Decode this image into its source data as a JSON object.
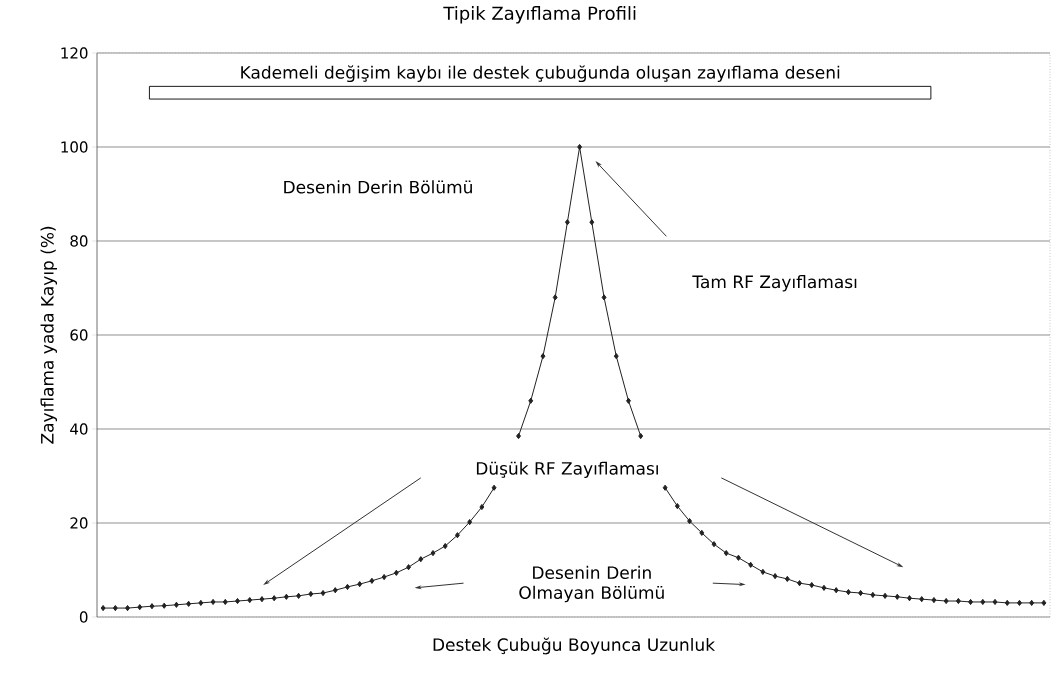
{
  "chart_data": {
    "type": "line",
    "title": "Tipik Zayıflama Profili",
    "xlabel": "Destek Çubuğu Boyunca Uzunluk",
    "ylabel": "Zayıflama yada Kayıp (%)",
    "categories": [
      null,
      null,
      null,
      null,
      null,
      null,
      null,
      null,
      null,
      null,
      null,
      null,
      null,
      null,
      null,
      null,
      null,
      null,
      null,
      null,
      null,
      null,
      null,
      null,
      null,
      null,
      null,
      null,
      null,
      null,
      null,
      null,
      null,
      null,
      null,
      null,
      null,
      null,
      null,
      null,
      null,
      null,
      null,
      null,
      null,
      null,
      null,
      null,
      null,
      null,
      null,
      null,
      null,
      null,
      null,
      null,
      null,
      null,
      null,
      null,
      null,
      null,
      null,
      null,
      null,
      null,
      null,
      null,
      null,
      null,
      null,
      null,
      null,
      null,
      null,
      null,
      null,
      null
    ],
    "series": [
      {
        "color": "#222222",
        "values": [
          1.9,
          1.9,
          1.9,
          2.1,
          2.3,
          2.4,
          2.6,
          2.8,
          3.0,
          3.2,
          3.2,
          3.4,
          3.6,
          3.8,
          4.0,
          4.3,
          4.5,
          4.9,
          5.1,
          5.7,
          6.4,
          7.0,
          7.7,
          8.5,
          9.4,
          10.6,
          12.3,
          13.6,
          15.1,
          17.4,
          20.2,
          23.4,
          27.5,
          null,
          38.5,
          46,
          55.5,
          68,
          84,
          100,
          84,
          68,
          55.5,
          46,
          38.5,
          null,
          27.5,
          23.6,
          20.4,
          17.9,
          15.5,
          13.6,
          12.6,
          11.1,
          9.6,
          8.7,
          8.1,
          7.2,
          6.8,
          6.2,
          5.7,
          5.3,
          5.1,
          4.7,
          4.5,
          4.3,
          4.0,
          3.8,
          3.6,
          3.4,
          3.4,
          3.2,
          3.2,
          3.2,
          3.0,
          3.0,
          3.0,
          3.0
        ]
      }
    ],
    "ylim": [
      0,
      120
    ],
    "yticks": [
      0,
      20,
      40,
      60,
      80,
      100,
      120
    ],
    "grid": "y",
    "marker": "diamond",
    "line_style": "solid",
    "tick_labels": "y",
    "annotations": [
      "Kademeli değişim kaybı ile destek çubuğunda oluşan zayıflama deseni",
      "Desenin Derin Bölümü",
      "Tam RF Zayıflaması",
      "Düşük RF Zayıflaması",
      "Desenin Derin Olmayan Bölümü"
    ]
  }
}
